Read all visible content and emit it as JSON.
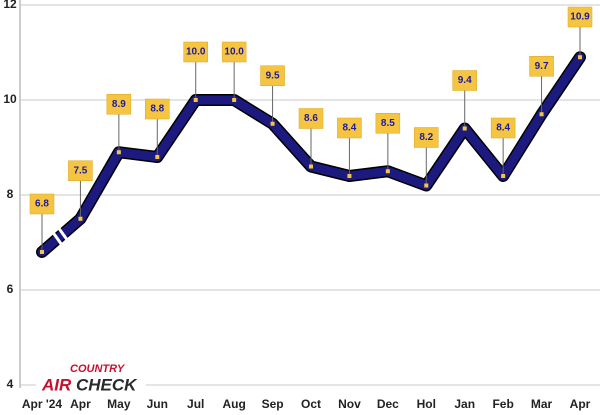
{
  "chart_data": {
    "type": "line",
    "categories": [
      "Apr '24",
      "Apr",
      "May",
      "Jun",
      "Jul",
      "Aug",
      "Sep",
      "Oct",
      "Nov",
      "Dec",
      "Hol",
      "Jan",
      "Feb",
      "Mar",
      "Apr"
    ],
    "series": [
      {
        "color": "#1c1a7e",
        "values": [
          6.8,
          7.5,
          8.9,
          8.8,
          10.0,
          10.0,
          9.5,
          8.6,
          8.4,
          8.5,
          8.2,
          9.4,
          8.4,
          9.7,
          10.9
        ],
        "value_labels": [
          "6.8",
          "7.5",
          "8.9",
          "8.8",
          "10.0",
          "10.0",
          "9.5",
          "8.6",
          "8.4",
          "8.5",
          "8.2",
          "9.4",
          "8.4",
          "9.7",
          "10.9"
        ]
      }
    ],
    "ylim": [
      4,
      12
    ],
    "yticks": [
      4,
      6,
      8,
      10,
      12
    ],
    "grid": true,
    "logo": {
      "top": "COUNTRY",
      "air": "AIR",
      "check": "CHECK"
    }
  }
}
